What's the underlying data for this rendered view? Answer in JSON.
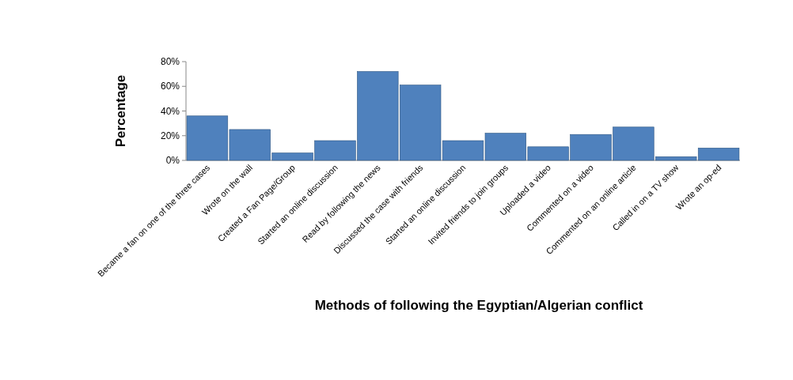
{
  "chart_data": {
    "type": "bar",
    "xlabel": "Methods of following the Egyptian/Algerian conflict",
    "ylabel": "Percentage",
    "categories": [
      "Became a fan on one of the three cases",
      "Wrote on the wall",
      "Created a Fan Page/Group",
      "Started an online discussion",
      "Read by following the news",
      "Discussed the case with friends",
      "Started an online discussion",
      "Invited friends to join groups",
      "Uploaded a video",
      "Commented on a video",
      "Commented on an online article",
      "Called in on a TV show",
      "Wrote an op-ed"
    ],
    "values": [
      36,
      25,
      6,
      16,
      72,
      61,
      16,
      22,
      11,
      21,
      27,
      3,
      10
    ],
    "color": "#4f81bd",
    "ylim": [
      0,
      80
    ],
    "yticks": [
      {
        "value": 0,
        "label": "0%"
      },
      {
        "value": 20,
        "label": "20%"
      },
      {
        "value": 40,
        "label": "40%"
      },
      {
        "value": 60,
        "label": "60%"
      },
      {
        "value": 80,
        "label": "80%"
      }
    ],
    "grid": false
  }
}
